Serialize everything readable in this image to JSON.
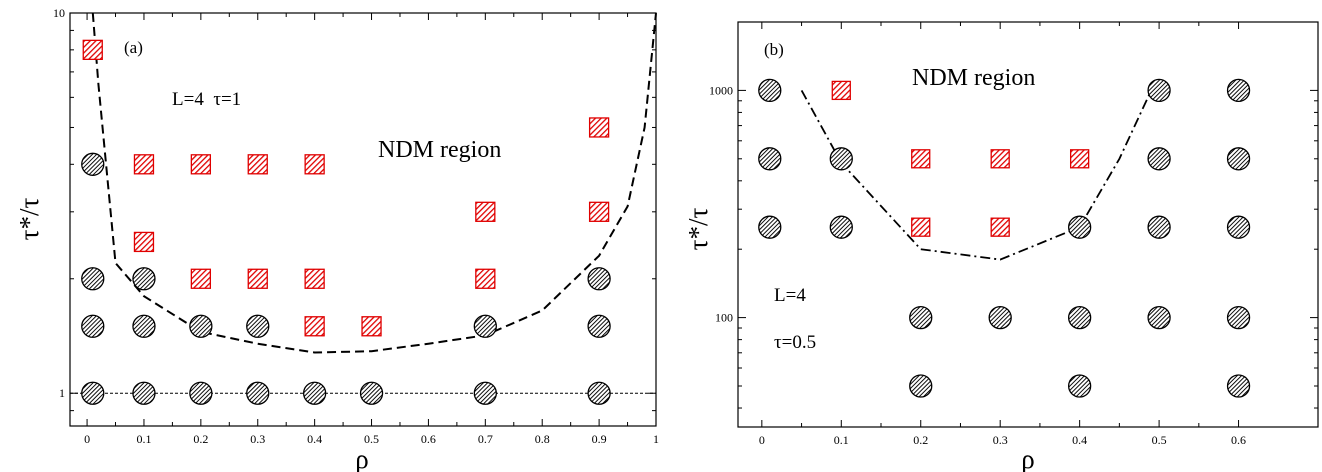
{
  "chart_data": [
    {
      "panel_label": "(a)",
      "type": "scatter",
      "xlabel": "ρ",
      "ylabel": "τ*/τ",
      "yscale": "log",
      "xlim": [
        -0.03,
        1.0
      ],
      "ylim": [
        0.82,
        10
      ],
      "x_ticks": [
        0,
        0.1,
        0.2,
        0.3,
        0.4,
        0.5,
        0.6,
        0.7,
        0.8,
        0.9,
        1
      ],
      "x_tick_labels": [
        "0",
        "0.1",
        "0.2",
        "0.3",
        "0.4",
        "0.5",
        "0.6",
        "0.7",
        "0.8",
        "0.9",
        "1"
      ],
      "y_ticks": [
        1,
        10
      ],
      "y_tick_labels": [
        "1",
        "10"
      ],
      "annotations": {
        "params": "L=4  τ=1",
        "region": "NDM region"
      },
      "series": [
        {
          "marker": "circle",
          "color": "#000000",
          "points": [
            [
              0.01,
              1
            ],
            [
              0.1,
              1
            ],
            [
              0.2,
              1
            ],
            [
              0.3,
              1
            ],
            [
              0.4,
              1
            ],
            [
              0.5,
              1
            ],
            [
              0.7,
              1
            ],
            [
              0.9,
              1
            ],
            [
              0.01,
              1.5
            ],
            [
              0.1,
              1.5
            ],
            [
              0.2,
              1.5
            ],
            [
              0.3,
              1.5
            ],
            [
              0.7,
              1.5
            ],
            [
              0.9,
              1.5
            ],
            [
              0.01,
              2
            ],
            [
              0.1,
              2
            ],
            [
              0.9,
              2
            ],
            [
              0.01,
              4
            ]
          ]
        },
        {
          "marker": "square",
          "color": "#e00000",
          "points": [
            [
              0.01,
              8
            ],
            [
              0.1,
              4
            ],
            [
              0.2,
              4
            ],
            [
              0.3,
              4
            ],
            [
              0.4,
              4
            ],
            [
              0.1,
              2.5
            ],
            [
              0.2,
              2
            ],
            [
              0.3,
              2
            ],
            [
              0.4,
              2
            ],
            [
              0.7,
              2
            ],
            [
              0.4,
              1.5
            ],
            [
              0.5,
              1.5
            ],
            [
              0.7,
              3
            ],
            [
              0.9,
              3
            ],
            [
              0.9,
              5
            ]
          ]
        },
        {
          "style": "dashed-boundary",
          "points": [
            [
              0.01,
              10
            ],
            [
              0.02,
              6.5
            ],
            [
              0.05,
              2.2
            ],
            [
              0.1,
              1.8
            ],
            [
              0.2,
              1.45
            ],
            [
              0.3,
              1.35
            ],
            [
              0.4,
              1.28
            ],
            [
              0.5,
              1.29
            ],
            [
              0.6,
              1.35
            ],
            [
              0.7,
              1.42
            ],
            [
              0.8,
              1.65
            ],
            [
              0.9,
              2.3
            ],
            [
              0.95,
              3.1
            ],
            [
              0.98,
              5
            ],
            [
              1.0,
              10
            ]
          ]
        },
        {
          "style": "dashed-reference",
          "points": [
            [
              -0.03,
              1
            ],
            [
              1.0,
              1
            ]
          ]
        }
      ]
    },
    {
      "panel_label": "(b)",
      "type": "scatter",
      "xlabel": "ρ",
      "ylabel": "τ*/τ",
      "yscale": "log",
      "xlim": [
        -0.03,
        0.7
      ],
      "ylim": [
        33,
        2000
      ],
      "x_ticks": [
        0,
        0.1,
        0.2,
        0.3,
        0.4,
        0.5,
        0.6
      ],
      "x_tick_labels": [
        "0",
        "0.1",
        "0.2",
        "0.3",
        "0.4",
        "0.5",
        "0.6"
      ],
      "y_ticks": [
        100,
        1000
      ],
      "y_tick_labels": [
        "100",
        "1000"
      ],
      "annotations": {
        "L": "L=4",
        "tau": "τ=0.5",
        "region": "NDM region"
      },
      "series": [
        {
          "marker": "circle",
          "color": "#000000",
          "points": [
            [
              0.01,
              1000
            ],
            [
              0.5,
              1000
            ],
            [
              0.6,
              1000
            ],
            [
              0.01,
              500
            ],
            [
              0.1,
              500
            ],
            [
              0.5,
              500
            ],
            [
              0.6,
              500
            ],
            [
              0.01,
              250
            ],
            [
              0.1,
              250
            ],
            [
              0.4,
              250
            ],
            [
              0.5,
              250
            ],
            [
              0.6,
              250
            ],
            [
              0.2,
              100
            ],
            [
              0.3,
              100
            ],
            [
              0.4,
              100
            ],
            [
              0.5,
              100
            ],
            [
              0.6,
              100
            ],
            [
              0.2,
              50
            ],
            [
              0.4,
              50
            ],
            [
              0.6,
              50
            ]
          ]
        },
        {
          "marker": "square",
          "color": "#e00000",
          "points": [
            [
              0.1,
              1000
            ],
            [
              0.2,
              500
            ],
            [
              0.3,
              500
            ],
            [
              0.4,
              500
            ],
            [
              0.2,
              250
            ],
            [
              0.3,
              250
            ]
          ]
        },
        {
          "style": "dashdot-boundary",
          "points": [
            [
              0.05,
              1000
            ],
            [
              0.1,
              480
            ],
            [
              0.2,
              200
            ],
            [
              0.3,
              180
            ],
            [
              0.4,
              250
            ],
            [
              0.45,
              500
            ],
            [
              0.49,
              1000
            ]
          ]
        }
      ]
    }
  ]
}
